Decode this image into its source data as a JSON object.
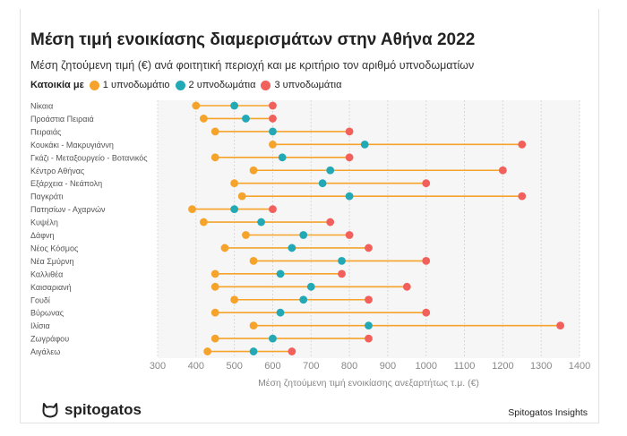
{
  "header": {
    "title": "Μέση τιμή ενοικίασης διαμερισμάτων στην Αθήνα 2022",
    "subtitle": "Μέση ζητούμενη τιμή (€) ανά φοιτητική περιοχή και με κριτήριο τον αριθμό υπνοδωματίων"
  },
  "legend": {
    "title": "Κατοικία με",
    "items": [
      {
        "label": "1 υπνοδωμάτιο",
        "color": "#F5A32B"
      },
      {
        "label": "2 υπνοδωμάτια",
        "color": "#23A8B5"
      },
      {
        "label": "3 υπνοδωμάτια",
        "color": "#F1605A"
      }
    ]
  },
  "chart_data": {
    "type": "dumbbell",
    "xlabel": "Μέση ζητούμενη τιμή ενοικίασης ανεξαρτήτως τ.μ. (€)",
    "xlim": [
      300,
      1400
    ],
    "xticks": [
      300,
      400,
      500,
      600,
      700,
      800,
      900,
      1000,
      1100,
      1200,
      1300,
      1400
    ],
    "grid": true,
    "categories": [
      "Νίκαια",
      "Προάστια Πειραιά",
      "Πειραιάς",
      "Κουκάκι - Μακρυγιάννη",
      "Γκάζι - Μεταξουργείο - Βοτανικός",
      "Κέντρο Αθήνας",
      "Εξάρχεια - Νεάπολη",
      "Παγκράτι",
      "Πατησίων - Αχαρνών",
      "Κυψέλη",
      "Δάφνη",
      "Νέος Κόσμος",
      "Νέα Σμύρνη",
      "Καλλιθέα",
      "Καισαριανή",
      "Γουδί",
      "Βύρωνας",
      "Ιλίσια",
      "Ζωγράφου",
      "Αιγάλεω"
    ],
    "series": [
      {
        "name": "1 υπνοδωμάτιο",
        "color": "#F5A32B",
        "values": [
          400,
          420,
          450,
          600,
          450,
          550,
          500,
          520,
          390,
          420,
          530,
          475,
          550,
          450,
          450,
          500,
          450,
          550,
          450,
          430
        ]
      },
      {
        "name": "2 υπνοδωμάτια",
        "color": "#23A8B5",
        "values": [
          500,
          530,
          600,
          840,
          625,
          750,
          730,
          800,
          500,
          570,
          680,
          650,
          780,
          620,
          700,
          680,
          620,
          850,
          600,
          550
        ]
      },
      {
        "name": "3 υπνοδωμάτια",
        "color": "#F1605A",
        "values": [
          600,
          600,
          800,
          1250,
          800,
          1200,
          1000,
          1250,
          600,
          750,
          800,
          850,
          1000,
          780,
          950,
          850,
          1000,
          1350,
          850,
          650
        ]
      }
    ]
  },
  "footer": {
    "brand": "spitogatos",
    "credit": "Spitogatos Insights"
  }
}
